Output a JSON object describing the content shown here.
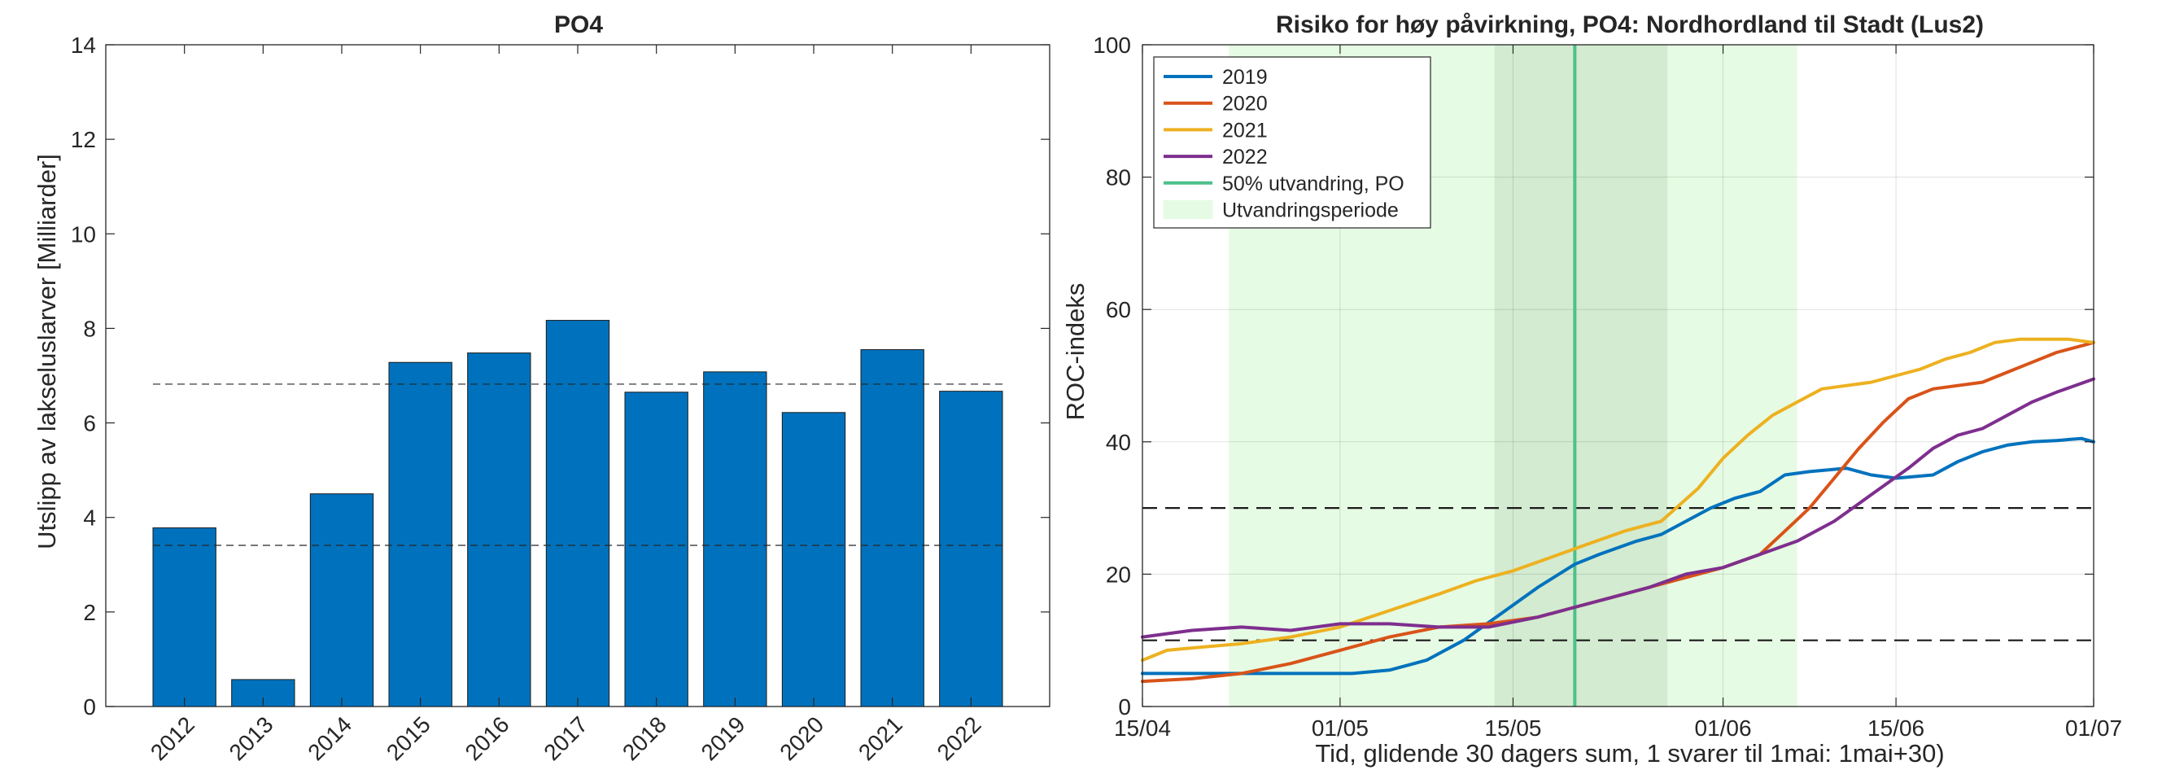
{
  "chart_data": [
    {
      "type": "bar",
      "title": "PO4",
      "xlabel": "",
      "ylabel": "Utslipp av lakseluslarver [Milliarder]",
      "categories": [
        "2012",
        "2013",
        "2014",
        "2015",
        "2016",
        "2017",
        "2018",
        "2019",
        "2020",
        "2021",
        "2022"
      ],
      "values": [
        3.78,
        0.57,
        4.5,
        7.28,
        7.48,
        8.17,
        6.65,
        7.08,
        6.22,
        7.55,
        6.67
      ],
      "ylim": [
        0,
        14
      ],
      "yticks": [
        "0",
        "2",
        "4",
        "6",
        "8",
        "10",
        "12",
        "14"
      ],
      "reference_lines": [
        6.82,
        3.41
      ],
      "bar_color": "#0072BD",
      "grid": false
    },
    {
      "type": "line",
      "title": "Risiko for høy påvirkning, PO4: Nordhordland til Stadt (Lus2)",
      "xlabel": "Tid, glidende 30 dagers sum, 1 svarer til 1mai: 1mai+30)",
      "ylabel": "ROC-indeks",
      "xticks": [
        {
          "day": 0,
          "label": "15/04"
        },
        {
          "day": 16,
          "label": "01/05"
        },
        {
          "day": 30,
          "label": "15/05"
        },
        {
          "day": 47,
          "label": "01/06"
        },
        {
          "day": 61,
          "label": "15/06"
        },
        {
          "day": 77,
          "label": "01/07"
        }
      ],
      "yticks": [
        "0",
        "20",
        "40",
        "60",
        "80",
        "100"
      ],
      "xlim": [
        0,
        77
      ],
      "ylim": [
        0,
        100
      ],
      "grid": true,
      "legend_position": "top-left",
      "threshold_lines": [
        30,
        10
      ],
      "migration_period": [
        7,
        53
      ],
      "migration_core": [
        28.5,
        42.5
      ],
      "migration_50pct": 35,
      "series": [
        {
          "name": "2019",
          "color": "#0072BD",
          "x": [
            0,
            5,
            10,
            14,
            17,
            20,
            23,
            26,
            29,
            32,
            35,
            37,
            40,
            42,
            44,
            46,
            48,
            50,
            52,
            54,
            57,
            59,
            61,
            64,
            66,
            68,
            70,
            72,
            74,
            76,
            77
          ],
          "y": [
            5.0,
            5.0,
            5.0,
            5.0,
            5.0,
            5.5,
            7.0,
            10.0,
            14.0,
            18.0,
            21.5,
            23.0,
            25.0,
            26.0,
            28.0,
            30.0,
            31.5,
            32.5,
            35.0,
            35.5,
            36.0,
            35.0,
            34.5,
            35.0,
            37.0,
            38.5,
            39.5,
            40.0,
            40.2,
            40.5,
            40.0
          ]
        },
        {
          "name": "2020",
          "color": "#D95319",
          "x": [
            0,
            4,
            8,
            12,
            16,
            20,
            24,
            28,
            32,
            35,
            38,
            41,
            44,
            47,
            50,
            52,
            54,
            56,
            58,
            60,
            62,
            64,
            66,
            68,
            70,
            72,
            74,
            76,
            77
          ],
          "y": [
            3.8,
            4.2,
            5.0,
            6.5,
            8.5,
            10.5,
            12.0,
            12.5,
            13.5,
            15.0,
            16.5,
            18.0,
            19.5,
            21.0,
            23.0,
            26.5,
            30.0,
            34.5,
            39.0,
            43.0,
            46.5,
            48.0,
            48.5,
            49.0,
            50.5,
            52.0,
            53.5,
            54.5,
            55.0
          ]
        },
        {
          "name": "2021",
          "color": "#EDB120",
          "x": [
            0,
            2,
            5,
            8,
            12,
            16,
            20,
            24,
            27,
            30,
            33,
            36,
            39,
            42,
            45,
            47,
            49,
            51,
            53,
            55,
            57,
            59,
            61,
            63,
            65,
            67,
            69,
            71,
            73,
            75,
            77
          ],
          "y": [
            7.0,
            8.5,
            9.0,
            9.5,
            10.5,
            12.0,
            14.5,
            17.0,
            19.0,
            20.5,
            22.5,
            24.5,
            26.5,
            28.0,
            33.0,
            37.5,
            41.0,
            44.0,
            46.0,
            48.0,
            48.5,
            49.0,
            50.0,
            51.0,
            52.5,
            53.5,
            55.0,
            55.5,
            55.5,
            55.5,
            55.0
          ]
        },
        {
          "name": "2022",
          "color": "#7E2F8E",
          "x": [
            0,
            4,
            8,
            12,
            16,
            20,
            24,
            28,
            32,
            35,
            38,
            41,
            44,
            47,
            50,
            53,
            56,
            59,
            62,
            64,
            66,
            68,
            70,
            72,
            74,
            77
          ],
          "y": [
            10.5,
            11.5,
            12.0,
            11.5,
            12.5,
            12.5,
            12.0,
            12.0,
            13.5,
            15.0,
            16.5,
            18.0,
            20.0,
            21.0,
            23.0,
            25.0,
            28.0,
            32.0,
            36.0,
            39.0,
            41.0,
            42.0,
            44.0,
            46.0,
            47.5,
            49.5
          ]
        }
      ],
      "legend": [
        {
          "label": "2019",
          "color": "#0072BD",
          "kind": "line"
        },
        {
          "label": "2020",
          "color": "#D95319",
          "kind": "line"
        },
        {
          "label": "2021",
          "color": "#EDB120",
          "kind": "line"
        },
        {
          "label": "2022",
          "color": "#7E2F8E",
          "kind": "line"
        },
        {
          "label": "50% utvandring, PO",
          "color": "#4CC08A",
          "kind": "line"
        },
        {
          "label": "Utvandringsperiode",
          "color": "#E6FBE3",
          "kind": "patch"
        }
      ]
    }
  ]
}
